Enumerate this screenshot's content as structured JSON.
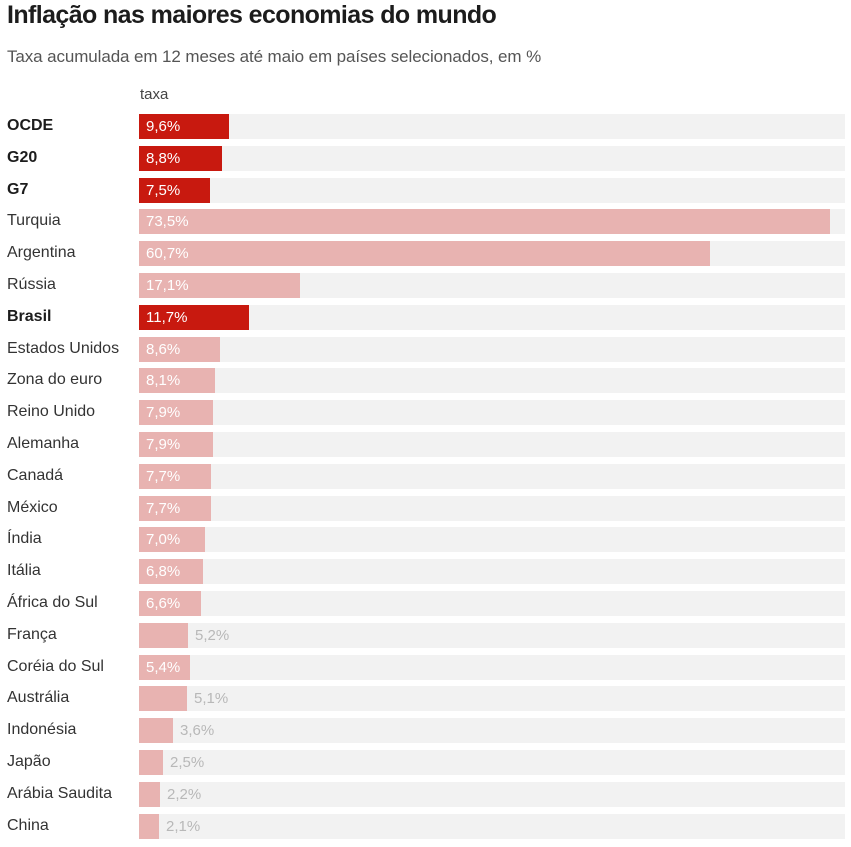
{
  "title": "Inflação nas maiores economias do mundo",
  "subtitle": "Taxa acumulada em 12 meses até maio em países selecionados, em %",
  "chart_data": {
    "type": "bar",
    "orientation": "horizontal",
    "column_header": "taxa",
    "xlim": [
      0,
      73.5
    ],
    "colors": {
      "highlight": "#c8190f",
      "default": "#e8b3b1",
      "track": "#f2f2f2"
    },
    "rows": [
      {
        "label": "OCDE",
        "value": 9.6,
        "value_label": "9,6%",
        "highlight": true
      },
      {
        "label": "G20",
        "value": 8.8,
        "value_label": "8,8%",
        "highlight": true
      },
      {
        "label": "G7",
        "value": 7.5,
        "value_label": "7,5%",
        "highlight": true
      },
      {
        "label": "Turquia",
        "value": 73.5,
        "value_label": "73,5%",
        "highlight": false
      },
      {
        "label": "Argentina",
        "value": 60.7,
        "value_label": "60,7%",
        "highlight": false
      },
      {
        "label": "Rússia",
        "value": 17.1,
        "value_label": "17,1%",
        "highlight": false
      },
      {
        "label": "Brasil",
        "value": 11.7,
        "value_label": "11,7%",
        "highlight": true
      },
      {
        "label": "Estados Unidos",
        "value": 8.6,
        "value_label": "8,6%",
        "highlight": false
      },
      {
        "label": "Zona do euro",
        "value": 8.1,
        "value_label": "8,1%",
        "highlight": false
      },
      {
        "label": "Reino Unido",
        "value": 7.9,
        "value_label": "7,9%",
        "highlight": false
      },
      {
        "label": "Alemanha",
        "value": 7.9,
        "value_label": "7,9%",
        "highlight": false
      },
      {
        "label": "Canadá",
        "value": 7.7,
        "value_label": "7,7%",
        "highlight": false
      },
      {
        "label": "México",
        "value": 7.7,
        "value_label": "7,7%",
        "highlight": false
      },
      {
        "label": "Índia",
        "value": 7.0,
        "value_label": "7,0%",
        "highlight": false
      },
      {
        "label": "Itália",
        "value": 6.8,
        "value_label": "6,8%",
        "highlight": false
      },
      {
        "label": "África do Sul",
        "value": 6.6,
        "value_label": "6,6%",
        "highlight": false
      },
      {
        "label": "França",
        "value": 5.2,
        "value_label": "5,2%",
        "highlight": false
      },
      {
        "label": "Coréia do Sul",
        "value": 5.4,
        "value_label": "5,4%",
        "highlight": false
      },
      {
        "label": "Austrália",
        "value": 5.1,
        "value_label": "5,1%",
        "highlight": false
      },
      {
        "label": "Indonésia",
        "value": 3.6,
        "value_label": "3,6%",
        "highlight": false
      },
      {
        "label": "Japão",
        "value": 2.5,
        "value_label": "2,5%",
        "highlight": false
      },
      {
        "label": "Arábia Saudita",
        "value": 2.2,
        "value_label": "2,2%",
        "highlight": false
      },
      {
        "label": "China",
        "value": 2.1,
        "value_label": "2,1%",
        "highlight": false
      }
    ]
  }
}
